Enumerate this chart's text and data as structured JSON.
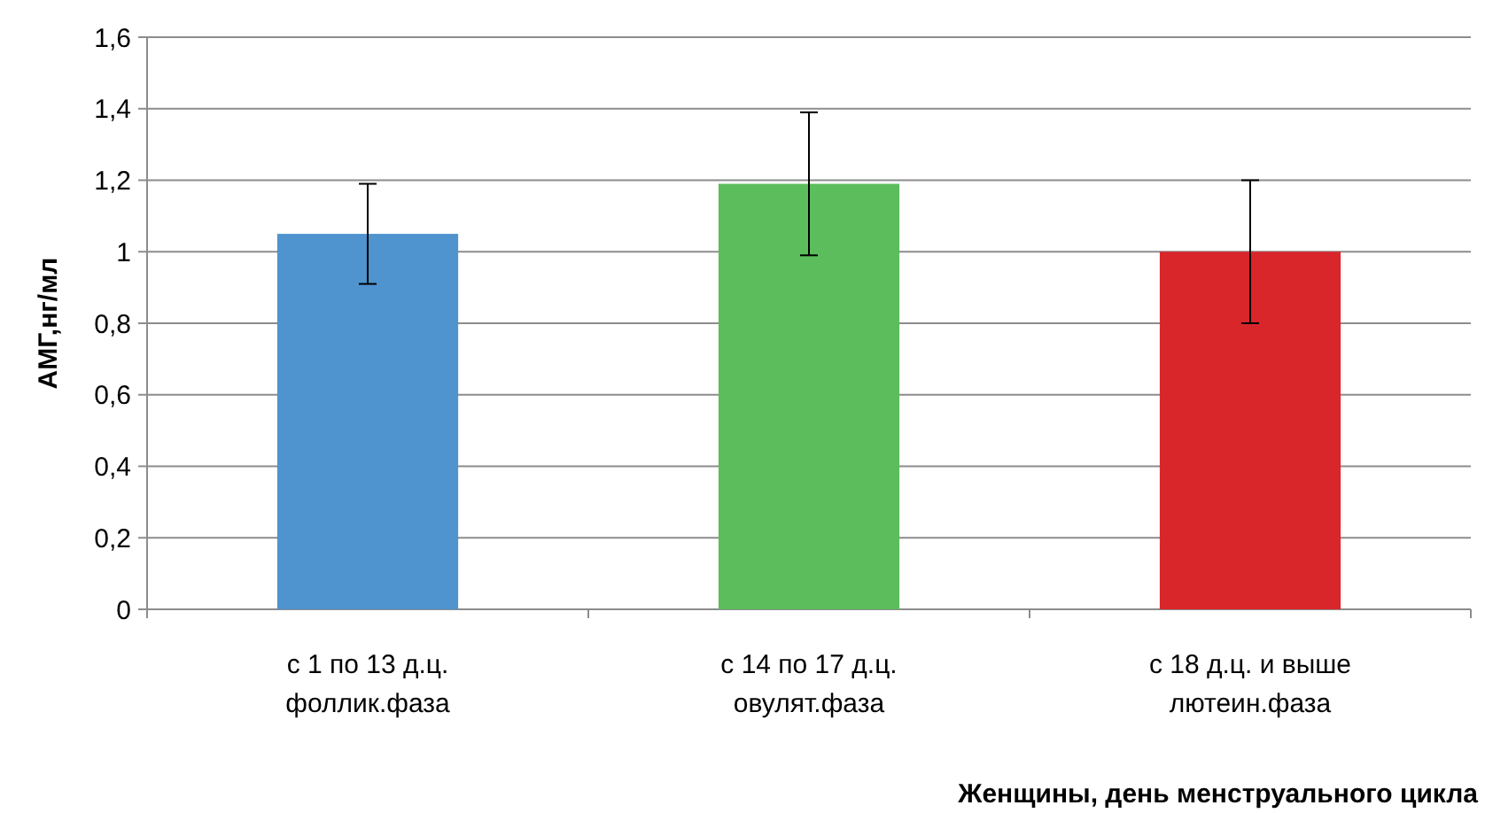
{
  "chart_data": {
    "type": "bar",
    "xlabel": "Женщины, день менструального цикла",
    "ylabel": "АМГ,нг/мл",
    "categories": [
      "с 1 по 13 д.ц.\nфоллик.фаза",
      "с 14 по 17 д.ц.\nовулят.фаза",
      "с 18 д.ц. и выше\nлютеин.фаза"
    ],
    "values": [
      1.05,
      1.19,
      1.0
    ],
    "colors": [
      "#4f93cf",
      "#5cbd5c",
      "#d9262b"
    ],
    "errors": [
      0.14,
      0.2,
      0.2
    ],
    "ylim": [
      0,
      1.6
    ],
    "yticks": [
      {
        "value": 0,
        "label": "0"
      },
      {
        "value": 0.2,
        "label": "0,2"
      },
      {
        "value": 0.4,
        "label": "0,4"
      },
      {
        "value": 0.6,
        "label": "0,6"
      },
      {
        "value": 0.8,
        "label": "0,8"
      },
      {
        "value": 1,
        "label": "1"
      },
      {
        "value": 1.2,
        "label": "1,2"
      },
      {
        "value": 1.4,
        "label": "1,4"
      },
      {
        "value": 1.6,
        "label": "1,6"
      }
    ],
    "grid": "y"
  }
}
